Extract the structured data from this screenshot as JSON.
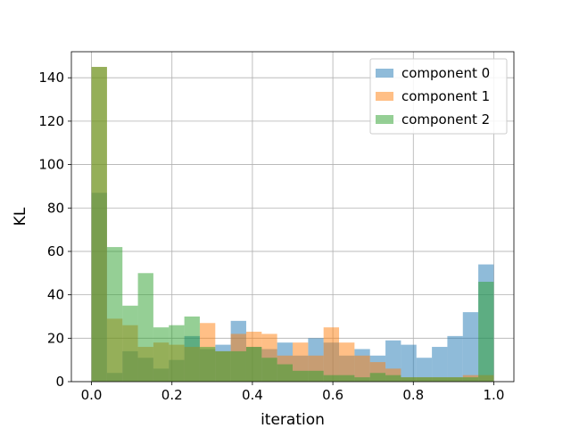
{
  "chart_data": {
    "type": "bar",
    "xlabel": "iteration",
    "ylabel": "KL",
    "xlim": [
      -0.05,
      1.05
    ],
    "ylim": [
      0,
      152
    ],
    "xticks": [
      0.0,
      0.2,
      0.4,
      0.6,
      0.8,
      1.0
    ],
    "xtick_labels": [
      "0.0",
      "0.2",
      "0.4",
      "0.6",
      "0.8",
      "1.0"
    ],
    "yticks": [
      0,
      20,
      40,
      60,
      80,
      100,
      120,
      140
    ],
    "ytick_labels": [
      "0",
      "20",
      "40",
      "60",
      "80",
      "100",
      "120",
      "140"
    ],
    "grid": true,
    "legend_position": "top-right",
    "bin_edges": [
      0.0,
      0.0385,
      0.0769,
      0.1154,
      0.1538,
      0.1923,
      0.2308,
      0.2692,
      0.3077,
      0.3462,
      0.3846,
      0.4231,
      0.4615,
      0.5,
      0.5385,
      0.5769,
      0.6154,
      0.6538,
      0.6923,
      0.7308,
      0.7692,
      0.8077,
      0.8462,
      0.8846,
      0.9231,
      0.9615,
      1.0
    ],
    "series": [
      {
        "name": "component 0",
        "color": "#1f77b4",
        "values": [
          87,
          4,
          14,
          11,
          6,
          10,
          21,
          15,
          17,
          28,
          16,
          15,
          18,
          12,
          20,
          18,
          12,
          15,
          12,
          19,
          17,
          11,
          16,
          21,
          32,
          54
        ]
      },
      {
        "name": "component 1",
        "color": "#ff7f0e",
        "values": [
          145,
          29,
          26,
          16,
          18,
          17,
          16,
          27,
          14,
          22,
          23,
          22,
          12,
          18,
          12,
          25,
          18,
          12,
          9,
          6,
          2,
          2,
          2,
          2,
          3,
          3
        ]
      },
      {
        "name": "component 2",
        "color": "#2ca02c",
        "values": [
          145,
          62,
          35,
          50,
          25,
          26,
          30,
          16,
          14,
          14,
          16,
          11,
          8,
          5,
          5,
          3,
          3,
          2,
          4,
          3,
          2,
          2,
          2,
          2,
          2,
          46
        ]
      }
    ]
  }
}
